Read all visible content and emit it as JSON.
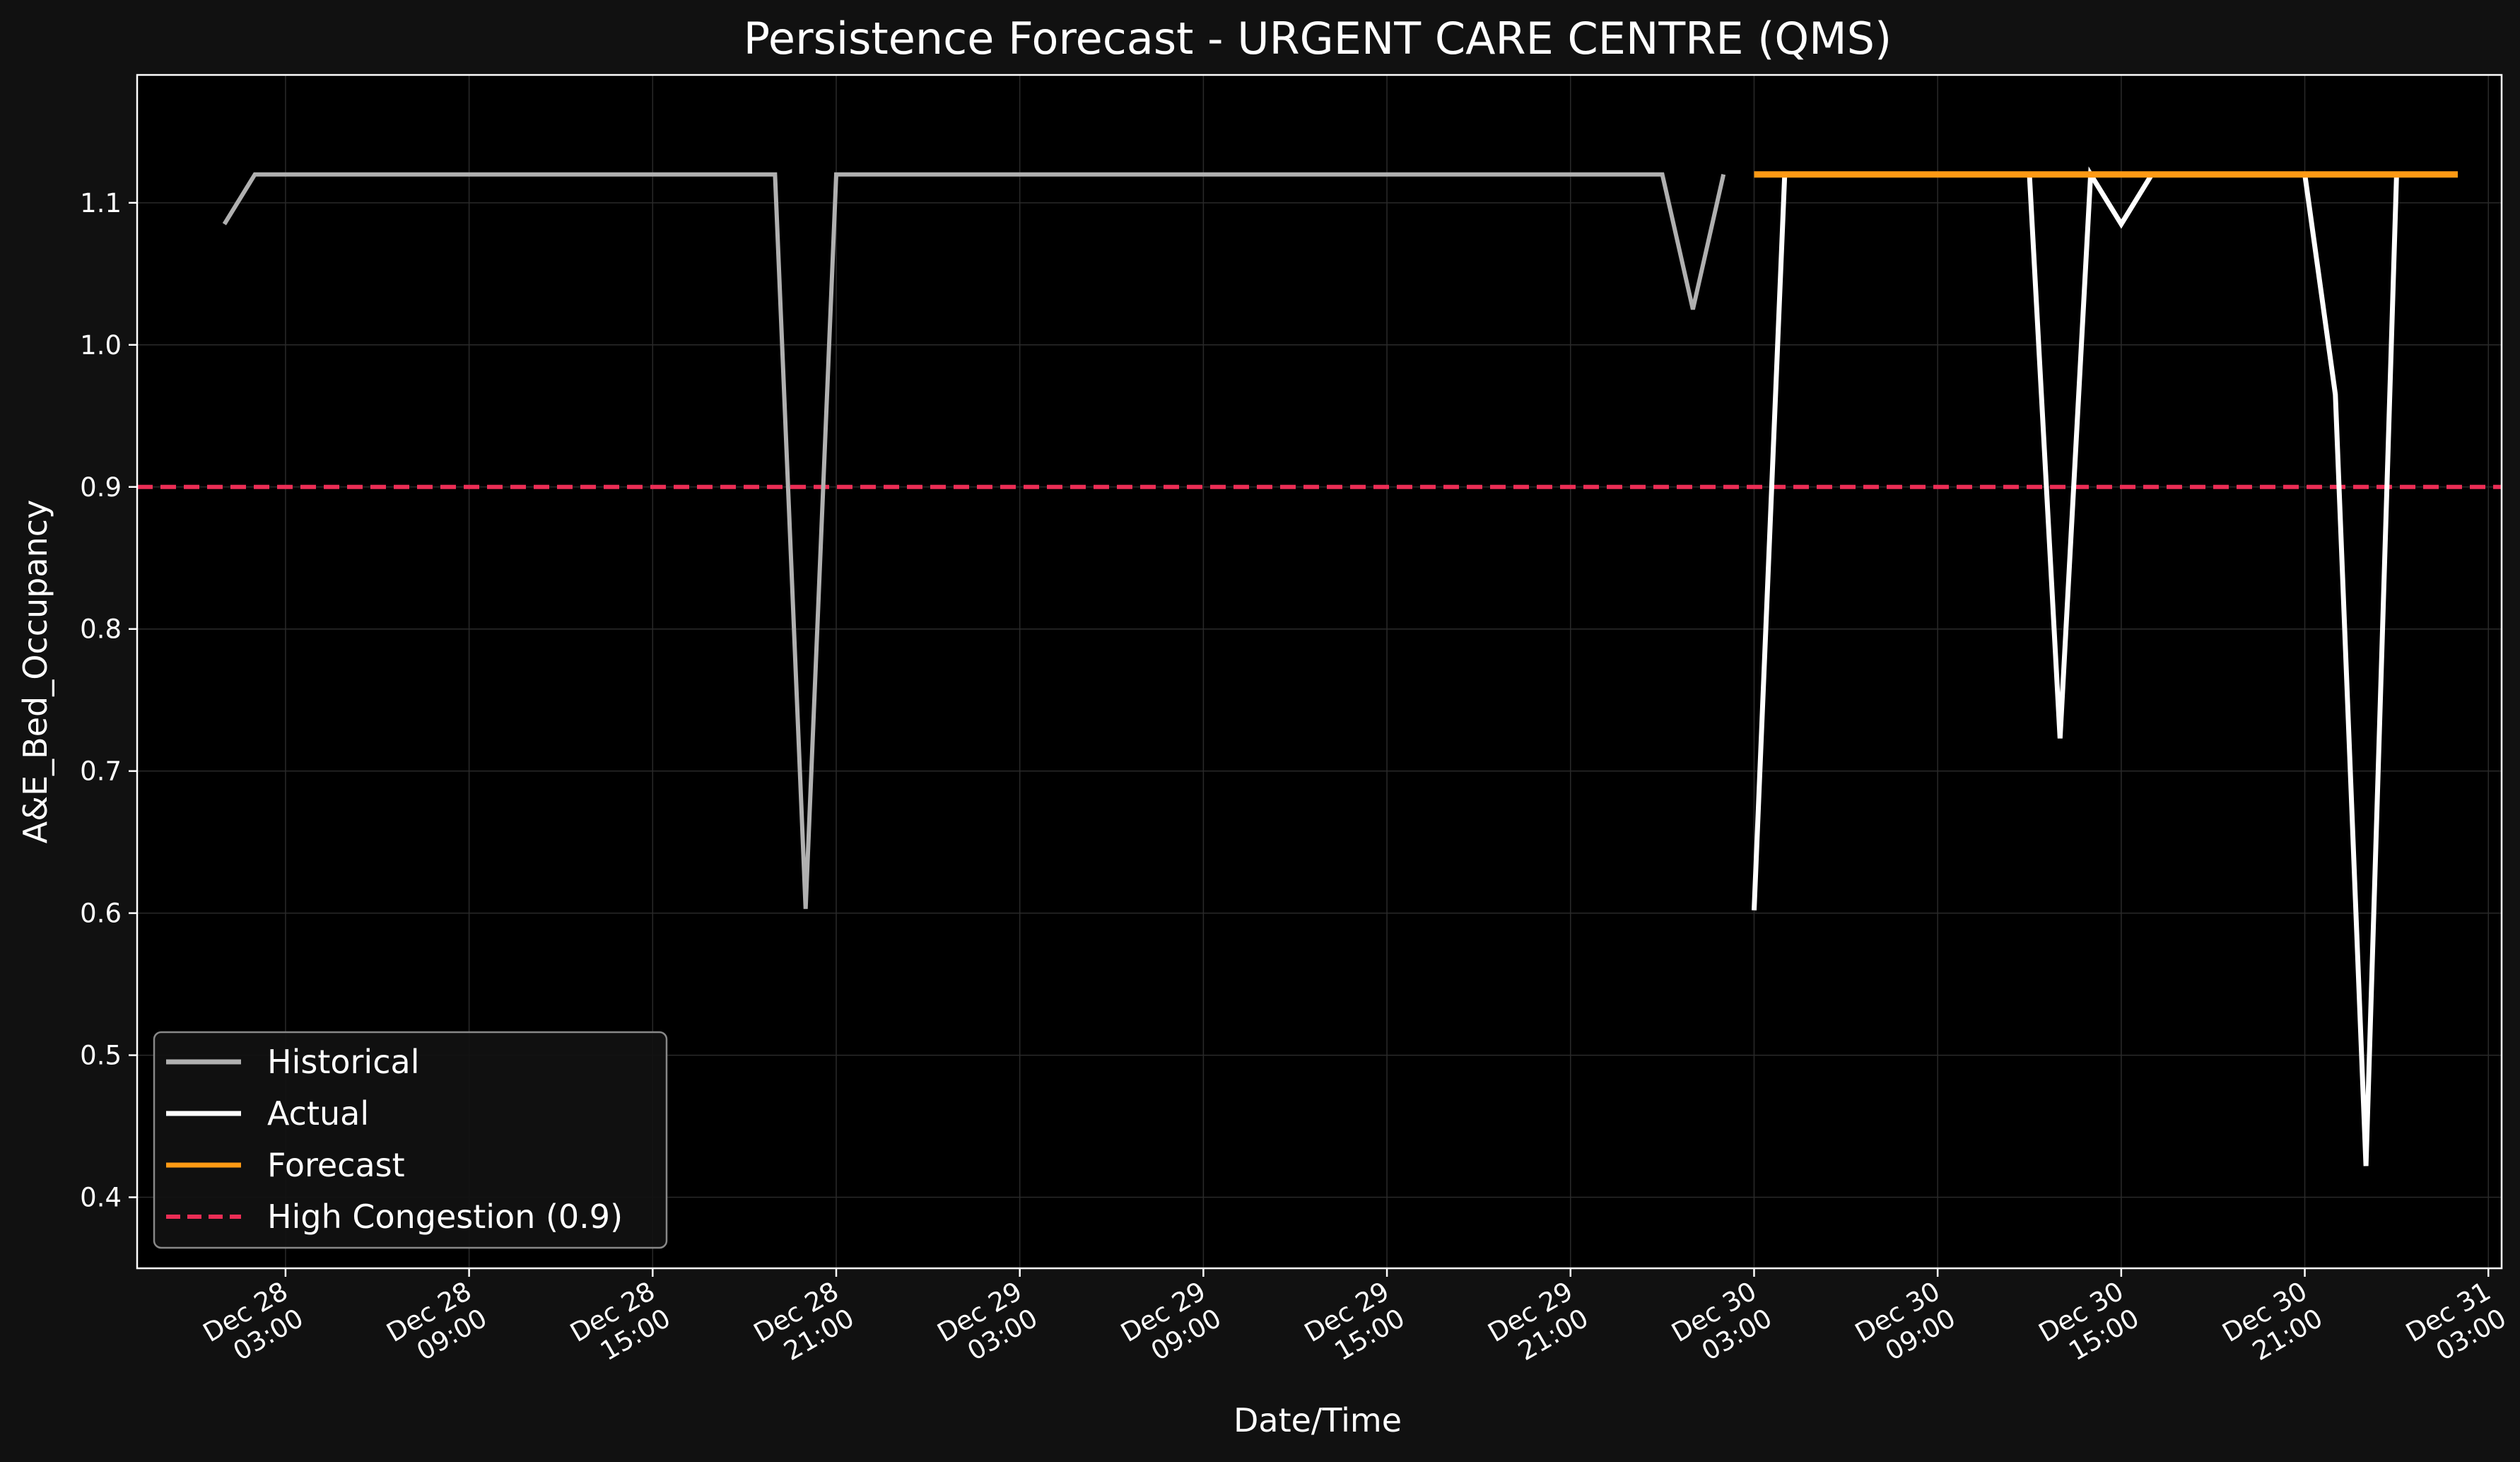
{
  "colors": {
    "figure_bg": "#111111",
    "axes_bg": "#000000",
    "text": "#ffffff",
    "grid": "#2a2a2a",
    "historical": "#b0b0b0",
    "actual": "#ffffff",
    "forecast": "#ff9a14",
    "threshold": "#ec2d55"
  },
  "chart_data": {
    "type": "line",
    "title": "Persistence Forecast - URGENT CARE CENTRE (QMS)",
    "xlabel": "Date/Time",
    "ylabel": "A&E_Bed_Occupancy",
    "xlim": [
      "2025-12-27T22:09",
      "2025-12-31T03:26"
    ],
    "ylim": [
      0.35,
      1.19
    ],
    "grid": true,
    "legend_position": "lower-left",
    "y_ticks": [
      "0.4",
      "0.5",
      "0.6",
      "0.7",
      "0.8",
      "0.9",
      "1.0",
      "1.1"
    ],
    "x_ticks": [
      {
        "t": "2025-12-28T03:00",
        "line1": "Dec 28",
        "line2": "03:00"
      },
      {
        "t": "2025-12-28T09:00",
        "line1": "Dec 28",
        "line2": "09:00"
      },
      {
        "t": "2025-12-28T15:00",
        "line1": "Dec 28",
        "line2": "15:00"
      },
      {
        "t": "2025-12-28T21:00",
        "line1": "Dec 28",
        "line2": "21:00"
      },
      {
        "t": "2025-12-29T03:00",
        "line1": "Dec 29",
        "line2": "03:00"
      },
      {
        "t": "2025-12-29T09:00",
        "line1": "Dec 29",
        "line2": "09:00"
      },
      {
        "t": "2025-12-29T15:00",
        "line1": "Dec 29",
        "line2": "15:00"
      },
      {
        "t": "2025-12-29T21:00",
        "line1": "Dec 29",
        "line2": "21:00"
      },
      {
        "t": "2025-12-30T03:00",
        "line1": "Dec 30",
        "line2": "03:00"
      },
      {
        "t": "2025-12-30T09:00",
        "line1": "Dec 30",
        "line2": "09:00"
      },
      {
        "t": "2025-12-30T15:00",
        "line1": "Dec 30",
        "line2": "15:00"
      },
      {
        "t": "2025-12-30T21:00",
        "line1": "Dec 30",
        "line2": "21:00"
      },
      {
        "t": "2025-12-31T03:00",
        "line1": "Dec 31",
        "line2": "03:00"
      }
    ],
    "series": [
      {
        "name": "Historical",
        "style": "solid",
        "color": "#b0b0b0",
        "points": [
          [
            "2025-12-28T01:00",
            1.085
          ],
          [
            "2025-12-28T02:00",
            1.12
          ],
          [
            "2025-12-28T19:00",
            1.12
          ],
          [
            "2025-12-28T20:00",
            0.603
          ],
          [
            "2025-12-28T21:00",
            1.12
          ],
          [
            "2025-12-30T00:00",
            1.12
          ],
          [
            "2025-12-30T01:00",
            1.025
          ],
          [
            "2025-12-30T02:00",
            1.12
          ]
        ]
      },
      {
        "name": "Actual",
        "style": "solid",
        "color": "#ffffff",
        "points": [
          [
            "2025-12-30T03:00",
            0.602
          ],
          [
            "2025-12-30T04:00",
            1.12
          ],
          [
            "2025-12-30T12:00",
            1.12
          ],
          [
            "2025-12-30T13:00",
            0.723
          ],
          [
            "2025-12-30T14:00",
            1.12
          ],
          [
            "2025-12-30T15:00",
            1.085
          ],
          [
            "2025-12-30T16:00",
            1.12
          ],
          [
            "2025-12-30T21:00",
            1.12
          ],
          [
            "2025-12-30T22:00",
            0.965
          ],
          [
            "2025-12-30T23:00",
            0.422
          ],
          [
            "2025-12-31T00:00",
            1.12
          ]
        ]
      },
      {
        "name": "Forecast",
        "style": "solid",
        "color": "#ff9a14",
        "points": [
          [
            "2025-12-30T03:00",
            1.12
          ],
          [
            "2025-12-31T02:00",
            1.12
          ]
        ]
      }
    ],
    "reference_lines": [
      {
        "name": "High Congestion (0.9)",
        "y": 0.9,
        "style": "dashed",
        "color": "#ec2d55"
      }
    ],
    "legend": [
      "Historical",
      "Actual",
      "Forecast",
      "High Congestion (0.9)"
    ]
  }
}
